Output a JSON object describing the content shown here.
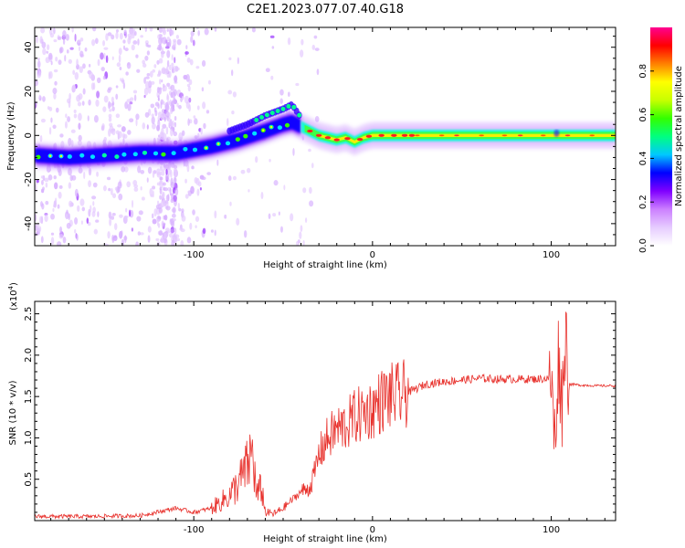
{
  "title": "C2E1.2023.077.07.40.G18",
  "chart_data": [
    {
      "type": "heatmap",
      "xlabel": "Height of straight line (km)",
      "ylabel": "Frequency (Hz)",
      "xlim": [
        -189,
        136
      ],
      "ylim": [
        -50,
        49
      ],
      "xticks": [
        -100,
        0,
        100
      ],
      "yticks": [
        -40,
        -20,
        0,
        20,
        40
      ],
      "colorbar": {
        "label": "Normalized spectral amplitude",
        "range": [
          0.0,
          1.0
        ],
        "ticks": [
          0.0,
          0.2,
          0.4,
          0.6,
          0.8
        ],
        "colormap": [
          "#ffffff",
          "#e6ccff",
          "#cc80ff",
          "#8000ff",
          "#0000ff",
          "#00c8ff",
          "#00ff80",
          "#33ff00",
          "#c8ff00",
          "#ffff00",
          "#ff8000",
          "#ff0000",
          "#ff0090"
        ]
      },
      "ridge": {
        "x": [
          -189,
          -170,
          -150,
          -130,
          -110,
          -90,
          -75,
          -60,
          -50,
          -45,
          -40,
          -35,
          -30,
          -25,
          -20,
          -15,
          -10,
          -5,
          0,
          20,
          50,
          100,
          105,
          136
        ],
        "freq": [
          -9,
          -10,
          -9,
          -8,
          -8,
          -5,
          -2,
          2,
          5,
          6,
          4,
          2,
          0,
          -1,
          -2,
          -1,
          -3,
          -1,
          0,
          0,
          0,
          0,
          0,
          0
        ]
      },
      "upper_branch": {
        "x": [
          -80,
          -70,
          -60,
          -50,
          -45,
          -40
        ],
        "freq": [
          2,
          5,
          9,
          12,
          14,
          8
        ]
      }
    },
    {
      "type": "line",
      "xlabel": "Height of straight line (km)",
      "ylabel": "SNR (10 * v/v)",
      "multiplier": "(x10",
      "multiplier_exp": "4",
      "multiplier_close": ")",
      "xlim": [
        -189,
        136
      ],
      "ylim": [
        0,
        26500
      ],
      "xticks": [
        -100,
        0,
        100
      ],
      "yticks": [
        0.5,
        1.0,
        1.5,
        2.0,
        2.5
      ],
      "ytick_labels": [
        "0.5",
        "1.0",
        "1.5",
        "2.0",
        "2.5"
      ],
      "color": "#e8312c",
      "series": [
        {
          "x": [
            -189,
            -160,
            -130,
            -110,
            -100,
            -90,
            -80,
            -75,
            -70,
            -67,
            -65,
            -62,
            -60,
            -55,
            -50,
            -45,
            -40,
            -35,
            -32,
            -30,
            -25,
            -20,
            -15,
            -10,
            -5,
            0,
            5,
            10,
            15,
            20,
            25,
            30,
            40,
            50,
            60,
            70,
            80,
            90,
            100,
            102,
            104,
            106,
            108,
            110,
            115,
            125,
            136
          ],
          "y": [
            500,
            500,
            600,
            1500,
            1000,
            1500,
            3000,
            4500,
            6500,
            8500,
            3000,
            4000,
            1000,
            800,
            1500,
            2500,
            3500,
            4000,
            6000,
            8000,
            10000,
            11000,
            11500,
            12500,
            13000,
            13500,
            14500,
            15000,
            15000,
            15500,
            16000,
            16500,
            16800,
            17000,
            17200,
            17100,
            17100,
            17100,
            17200,
            9000,
            20000,
            14000,
            23000,
            16500,
            16400,
            16300,
            16300
          ]
        }
      ]
    }
  ]
}
